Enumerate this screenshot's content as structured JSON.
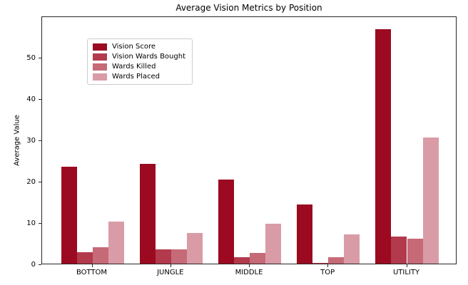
{
  "chart_data": {
    "type": "bar",
    "title": "Average Vision Metrics by Position",
    "xlabel": "",
    "ylabel": "Average Value",
    "categories": [
      "BOTTOM",
      "JUNGLE",
      "MIDDLE",
      "TOP",
      "UTILITY"
    ],
    "series": [
      {
        "name": "Vision Score",
        "color": "#9b0a20",
        "values": [
          23.4,
          24.2,
          20.3,
          14.4,
          56.8
        ]
      },
      {
        "name": "Vision Wards Bought",
        "color": "#b23a4c",
        "values": [
          2.8,
          3.4,
          1.6,
          0.2,
          6.6
        ]
      },
      {
        "name": "Wards Killed",
        "color": "#c66a77",
        "values": [
          3.9,
          3.4,
          2.6,
          1.5,
          6.1
        ]
      },
      {
        "name": "Wards Placed",
        "color": "#d99ca6",
        "values": [
          10.1,
          7.5,
          9.6,
          7.1,
          30.5
        ]
      }
    ],
    "ylim": [
      0,
      60
    ],
    "yticks": [
      0,
      10,
      20,
      30,
      40,
      50
    ],
    "grid": false,
    "legend_position": "upper left",
    "bar_group_width_fraction": 0.8
  }
}
